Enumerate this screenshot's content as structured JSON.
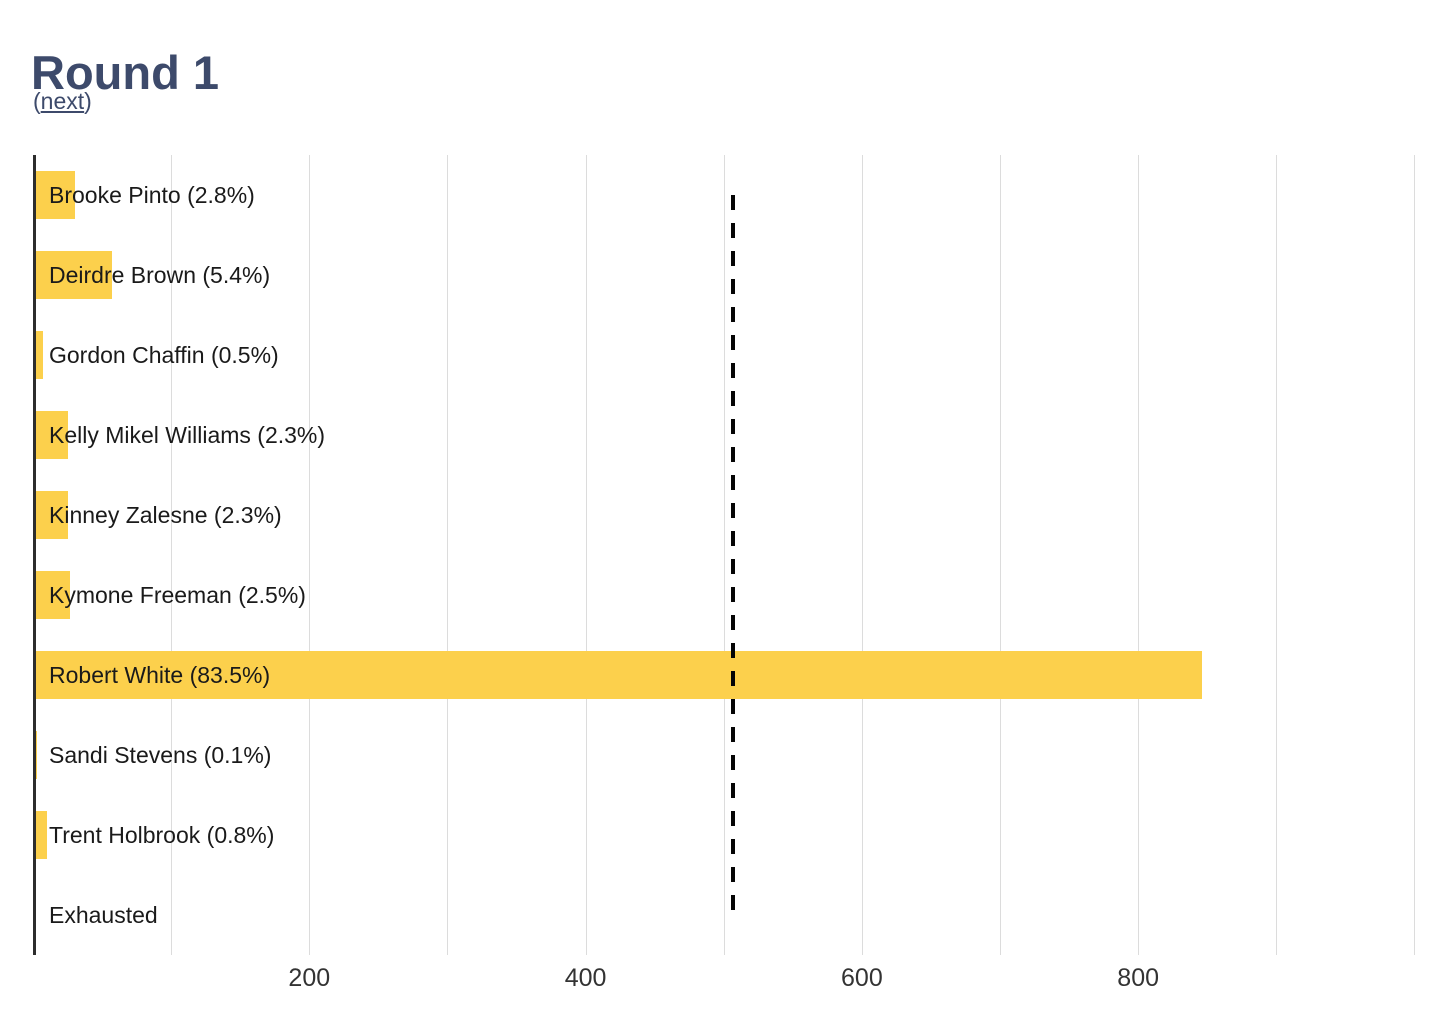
{
  "header": {
    "title": "Round 1",
    "nav_prefix": "(",
    "nav_link_label": "next",
    "nav_suffix": ")"
  },
  "colors": {
    "bar": "#fcd04c",
    "title": "#3d4a6b",
    "link": "#3d4a6b",
    "gridline": "#dcdcdc",
    "y_axis": "#2d2d2d",
    "threshold": "#050505",
    "bar_label": "#1a1a1a",
    "tick_label": "#333333"
  },
  "chart_data": {
    "type": "bar",
    "orientation": "horizontal",
    "title": "Round 1",
    "xlim": [
      0,
      1025
    ],
    "xticks": [
      200,
      400,
      600,
      800
    ],
    "grid_step": 100,
    "grid": true,
    "majority_threshold": 507,
    "bars": [
      {
        "label": "Brooke Pinto (2.8%)",
        "candidate": "Brooke Pinto",
        "percent": 2.8,
        "votes": 28
      },
      {
        "label": "Deirdre Brown (5.4%)",
        "candidate": "Deirdre Brown",
        "percent": 5.4,
        "votes": 55
      },
      {
        "label": "Gordon Chaffin (0.5%)",
        "candidate": "Gordon Chaffin",
        "percent": 0.5,
        "votes": 5
      },
      {
        "label": "Kelly Mikel Williams (2.3%)",
        "candidate": "Kelly Mikel Williams",
        "percent": 2.3,
        "votes": 23
      },
      {
        "label": "Kinney Zalesne (2.3%)",
        "candidate": "Kinney Zalesne",
        "percent": 2.3,
        "votes": 23
      },
      {
        "label": "Kymone Freeman (2.5%)",
        "candidate": "Kymone Freeman",
        "percent": 2.5,
        "votes": 25
      },
      {
        "label": "Robert White (83.5%)",
        "candidate": "Robert White",
        "percent": 83.5,
        "votes": 846
      },
      {
        "label": "Sandi Stevens (0.1%)",
        "candidate": "Sandi Stevens",
        "percent": 0.1,
        "votes": 1
      },
      {
        "label": "Trent Holbrook (0.8%)",
        "candidate": "Trent Holbrook",
        "percent": 0.8,
        "votes": 8
      },
      {
        "label": "Exhausted",
        "candidate": "Exhausted",
        "percent": null,
        "votes": 0
      }
    ]
  }
}
